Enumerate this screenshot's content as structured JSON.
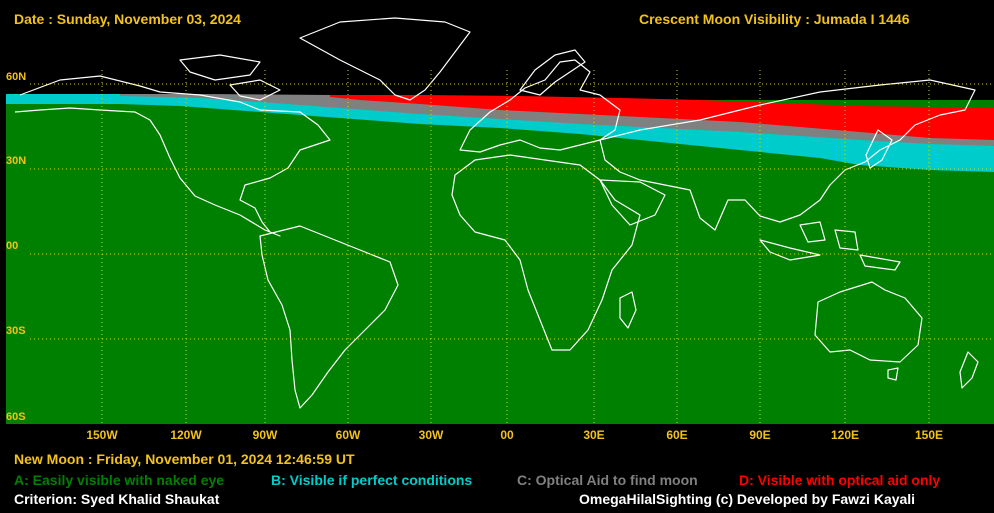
{
  "header": {
    "date": "Date : Sunday, November 03, 2024",
    "title": "Crescent Moon Visibility : Jumada I  1446"
  },
  "map": {
    "lat_labels": [
      "60N",
      "30N",
      "00",
      "30S",
      "60S"
    ],
    "lon_labels": [
      "150W",
      "120W",
      "90W",
      "60W",
      "30W",
      "00",
      "30E",
      "60E",
      "90E",
      "120E",
      "150E"
    ]
  },
  "footer": {
    "new_moon": "New Moon : Friday, November 01, 2024  12:46:59  UT",
    "criterion": "Criterion: Syed Khalid Shaukat",
    "credits": "OmegaHilalSighting  (c)  Developed by Fawzi Kayali"
  },
  "legend": [
    {
      "label": "A: Easily visible with naked eye",
      "color": "#008000"
    },
    {
      "label": "B: Visible if perfect conditions",
      "color": "#00cccc"
    },
    {
      "label": "C: Optical Aid to find moon",
      "color": "#808080"
    },
    {
      "label": "D: Visible with optical aid only",
      "color": "#ff0000"
    }
  ],
  "colors": {
    "label": "#f2c21a",
    "grid": "#d8d800",
    "coast": "#ffffff",
    "background": "#000000"
  }
}
